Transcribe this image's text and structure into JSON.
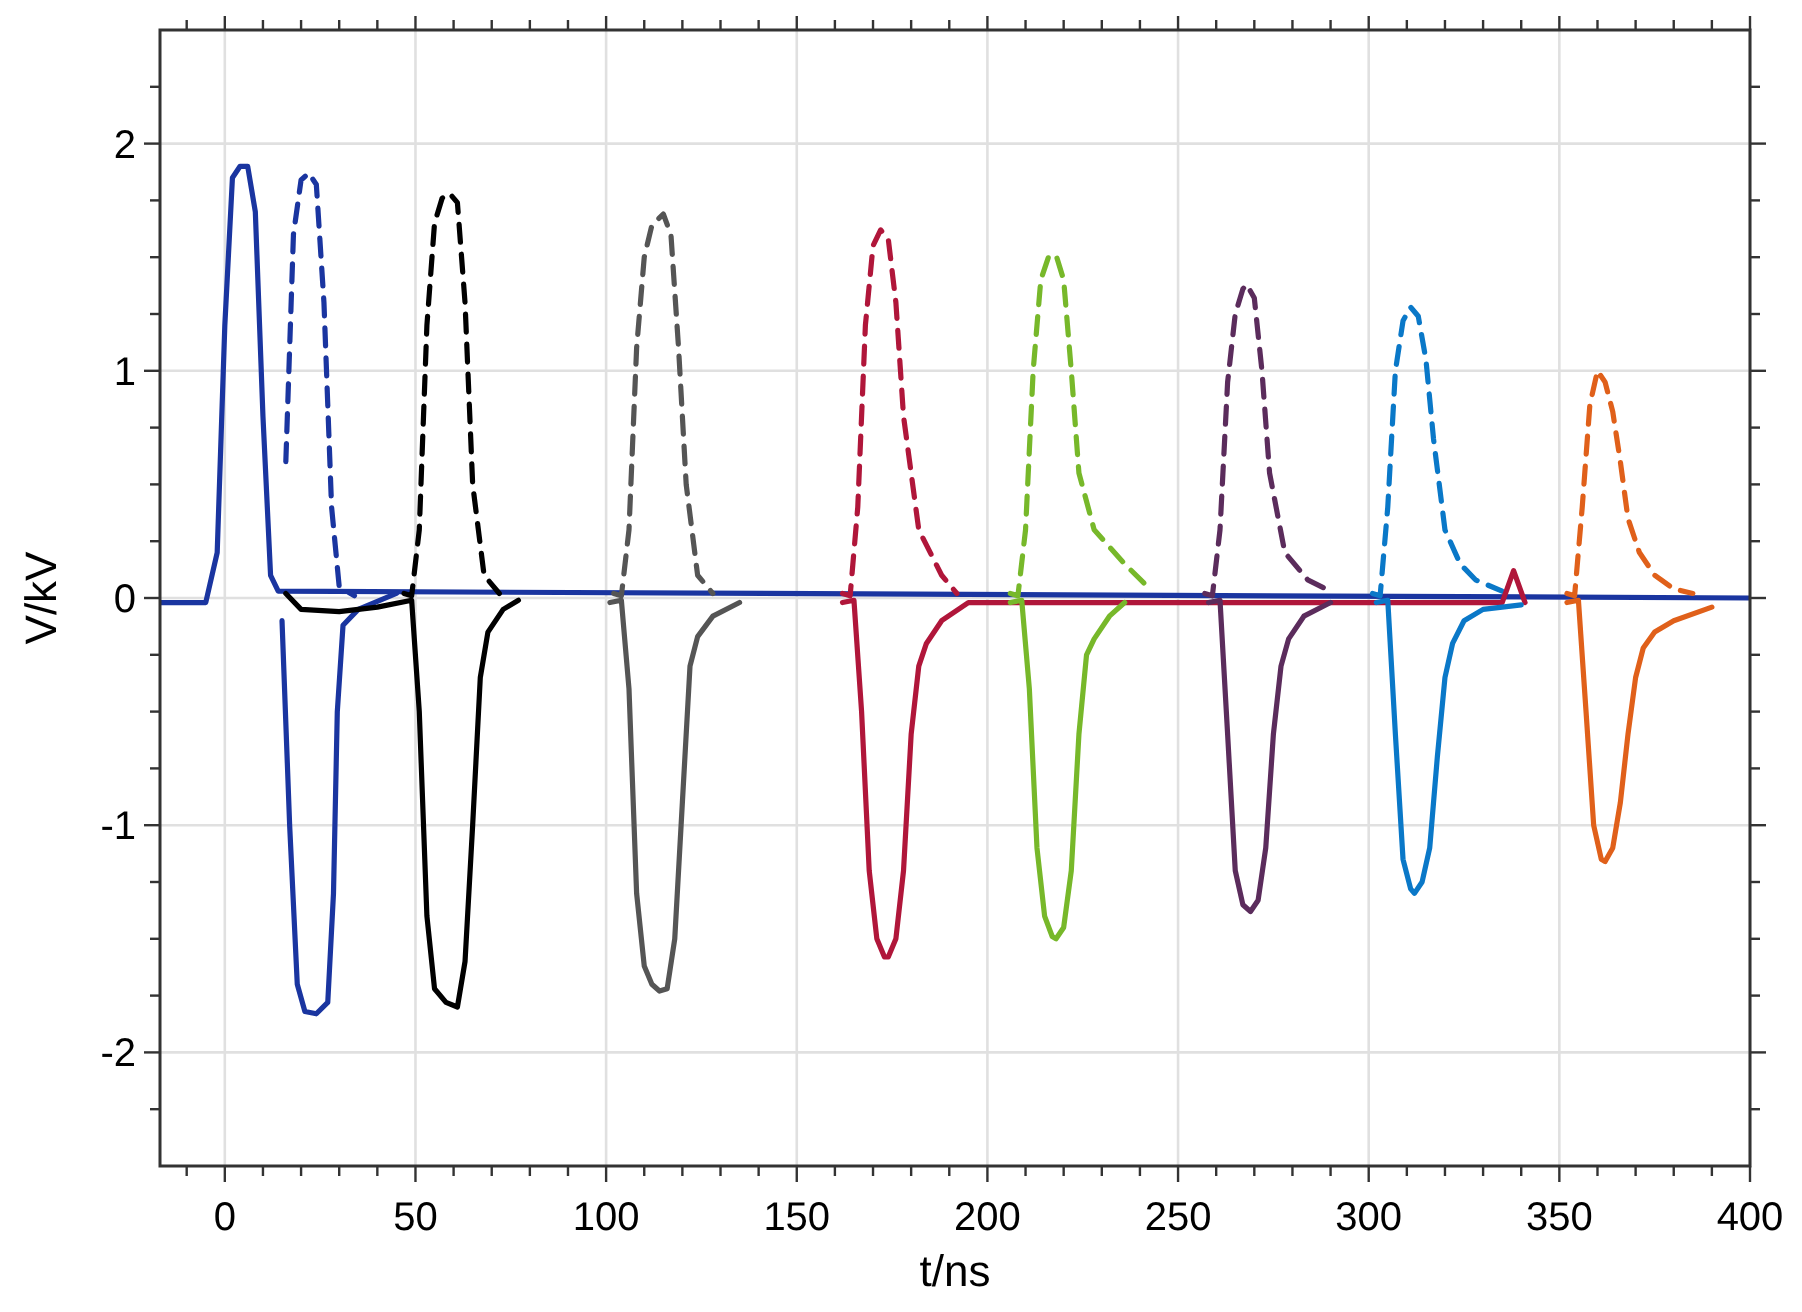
{
  "chart_data": {
    "type": "line",
    "xlabel": "t/ns",
    "ylabel": "V/kV",
    "xlim": [
      -17,
      400
    ],
    "ylim": [
      -2.5,
      2.5
    ],
    "xticks": [
      {
        "value": -10,
        "label": null
      },
      0,
      {
        "value": 10,
        "label": null
      },
      {
        "value": 20,
        "label": null
      },
      {
        "value": 30,
        "label": null
      },
      {
        "value": 40,
        "label": null
      },
      50,
      {
        "value": 60,
        "label": null
      },
      {
        "value": 70,
        "label": null
      },
      {
        "value": 80,
        "label": null
      },
      {
        "value": 90,
        "label": null
      },
      100,
      {
        "value": 110,
        "label": null
      },
      {
        "value": 120,
        "label": null
      },
      {
        "value": 130,
        "label": null
      },
      {
        "value": 140,
        "label": null
      },
      150,
      {
        "value": 160,
        "label": null
      },
      {
        "value": 170,
        "label": null
      },
      {
        "value": 180,
        "label": null
      },
      {
        "value": 190,
        "label": null
      },
      200,
      {
        "value": 210,
        "label": null
      },
      {
        "value": 220,
        "label": null
      },
      {
        "value": 230,
        "label": null
      },
      {
        "value": 240,
        "label": null
      },
      250,
      {
        "value": 260,
        "label": null
      },
      {
        "value": 270,
        "label": null
      },
      {
        "value": 280,
        "label": null
      },
      {
        "value": 290,
        "label": null
      },
      300,
      {
        "value": 310,
        "label": null
      },
      {
        "value": 320,
        "label": null
      },
      {
        "value": 330,
        "label": null
      },
      {
        "value": 340,
        "label": null
      },
      350,
      {
        "value": 360,
        "label": null
      },
      {
        "value": 370,
        "label": null
      },
      {
        "value": 380,
        "label": null
      },
      {
        "value": 390,
        "label": null
      },
      400
    ],
    "yticks": [
      {
        "value": -2.25,
        "label": null
      },
      -2,
      {
        "value": -1.75,
        "label": null
      },
      {
        "value": -1.5,
        "label": null
      },
      {
        "value": -1.25,
        "label": null
      },
      -1,
      {
        "value": -0.75,
        "label": null
      },
      {
        "value": -0.5,
        "label": null
      },
      {
        "value": -0.25,
        "label": null
      },
      0,
      {
        "value": 0.25,
        "label": null
      },
      {
        "value": 0.5,
        "label": null
      },
      {
        "value": 0.75,
        "label": null
      },
      1,
      {
        "value": 1.25,
        "label": null
      },
      {
        "value": 1.5,
        "label": null
      },
      {
        "value": 1.75,
        "label": null
      },
      2,
      {
        "value": 2.25,
        "label": null
      }
    ],
    "grid": true,
    "marker": "none",
    "series": [
      {
        "color": "#1a35a0",
        "line_style": "solid",
        "x": [
          -17,
          -5,
          -2,
          0,
          2,
          4,
          6,
          8,
          10,
          12,
          14,
          400
        ],
        "values": [
          -0.02,
          -0.02,
          0.2,
          1.2,
          1.85,
          1.9,
          1.9,
          1.7,
          0.8,
          0.1,
          0.03,
          0
        ]
      },
      {
        "color": "#1a35a0",
        "line_style": "dashed",
        "x": [
          16,
          18,
          20,
          22,
          24,
          26,
          28,
          30,
          34
        ],
        "values": [
          0.6,
          1.6,
          1.84,
          1.87,
          1.82,
          1.3,
          0.4,
          0.05,
          0.01
        ]
      },
      {
        "color": "#000000",
        "line_style": "dashed",
        "x": [
          47,
          49,
          51,
          53,
          55,
          57,
          59,
          61,
          63,
          65,
          68,
          72
        ],
        "values": [
          0.02,
          0.01,
          0.3,
          1.2,
          1.65,
          1.76,
          1.78,
          1.74,
          1.3,
          0.5,
          0.1,
          0.02
        ]
      },
      {
        "color": "#555555",
        "line_style": "dashed",
        "x": [
          102,
          104,
          106,
          108,
          110,
          112,
          115,
          117,
          119,
          121,
          124,
          128
        ],
        "values": [
          0.02,
          0.01,
          0.3,
          1.1,
          1.5,
          1.64,
          1.69,
          1.6,
          1.1,
          0.5,
          0.1,
          0.02
        ]
      },
      {
        "color": "#b0163a",
        "line_style": "dashed",
        "x": [
          162,
          164,
          166,
          168,
          170,
          172,
          174,
          176,
          178,
          182,
          188,
          192
        ],
        "values": [
          0.02,
          0.01,
          0.4,
          1.2,
          1.55,
          1.62,
          1.58,
          1.3,
          0.8,
          0.3,
          0.1,
          0.02
        ]
      },
      {
        "color": "#77b82a",
        "line_style": "dashed",
        "x": [
          206,
          208,
          210,
          212,
          214,
          216,
          218,
          220,
          222,
          224,
          228,
          236,
          242
        ],
        "values": [
          0.02,
          0.01,
          0.3,
          1.0,
          1.4,
          1.5,
          1.51,
          1.4,
          1.0,
          0.55,
          0.3,
          0.15,
          0.05
        ]
      },
      {
        "color": "#5b2c5c",
        "line_style": "dashed",
        "x": [
          257,
          259,
          261,
          263,
          265,
          267,
          268,
          270,
          272,
          274,
          278,
          284,
          290
        ],
        "values": [
          0.02,
          0.01,
          0.3,
          0.95,
          1.25,
          1.36,
          1.38,
          1.32,
          1.0,
          0.55,
          0.2,
          0.08,
          0.03
        ]
      },
      {
        "color": "#0a78c8",
        "line_style": "dashed",
        "x": [
          301,
          303,
          305,
          307,
          309,
          311,
          313,
          315,
          317,
          320,
          324,
          328,
          335
        ],
        "values": [
          0.02,
          0.01,
          0.4,
          1.0,
          1.22,
          1.28,
          1.24,
          1.05,
          0.7,
          0.3,
          0.15,
          0.08,
          0.03
        ]
      },
      {
        "color": "#e0601a",
        "line_style": "dashed",
        "x": [
          352,
          354,
          356,
          358,
          360,
          362,
          364,
          366,
          368,
          371,
          375,
          380,
          385
        ],
        "values": [
          0.02,
          0.01,
          0.4,
          0.85,
          1.0,
          0.95,
          0.82,
          0.6,
          0.35,
          0.2,
          0.1,
          0.04,
          0.02
        ]
      },
      {
        "color": "#1a35a0",
        "line_style": "solid",
        "x": [
          15,
          17,
          19,
          21,
          24,
          27,
          28.5,
          29.5,
          31,
          35,
          45
        ],
        "values": [
          -0.1,
          -1.0,
          -1.7,
          -1.82,
          -1.83,
          -1.78,
          -1.3,
          -0.5,
          -0.12,
          -0.05,
          0.02
        ]
      },
      {
        "color": "#000000",
        "line_style": "solid",
        "x": [
          16,
          20,
          30,
          40,
          49,
          51,
          53,
          55,
          58,
          61,
          63,
          65,
          67,
          69,
          73,
          77
        ],
        "values": [
          0.02,
          -0.05,
          -0.06,
          -0.04,
          -0.01,
          -0.5,
          -1.4,
          -1.72,
          -1.78,
          -1.8,
          -1.6,
          -1.0,
          -0.35,
          -0.15,
          -0.05,
          -0.01
        ]
      },
      {
        "color": "#555555",
        "line_style": "solid",
        "x": [
          101,
          104,
          106,
          108,
          110,
          112,
          114,
          116,
          118,
          120,
          122,
          124,
          128,
          135
        ],
        "values": [
          -0.02,
          -0.01,
          -0.4,
          -1.3,
          -1.62,
          -1.7,
          -1.73,
          -1.72,
          -1.5,
          -0.9,
          -0.3,
          -0.17,
          -0.08,
          -0.02
        ]
      },
      {
        "color": "#b0163a",
        "line_style": "solid",
        "x": [
          162,
          165,
          167,
          169,
          171,
          173,
          174,
          176,
          178,
          180,
          182,
          184,
          188,
          195,
          335,
          338,
          341
        ],
        "values": [
          -0.02,
          -0.01,
          -0.5,
          -1.2,
          -1.5,
          -1.58,
          -1.58,
          -1.5,
          -1.2,
          -0.6,
          -0.3,
          -0.2,
          -0.1,
          -0.02,
          -0.02,
          0.12,
          -0.02
        ]
      },
      {
        "color": "#77b82a",
        "line_style": "solid",
        "x": [
          206,
          209,
          211,
          213,
          215,
          217,
          218,
          220,
          222,
          224,
          226,
          228,
          232,
          236
        ],
        "values": [
          -0.02,
          -0.01,
          -0.4,
          -1.1,
          -1.4,
          -1.49,
          -1.5,
          -1.45,
          -1.2,
          -0.6,
          -0.25,
          -0.18,
          -0.08,
          -0.02
        ]
      },
      {
        "color": "#5b2c5c",
        "line_style": "solid",
        "x": [
          258,
          261,
          263,
          265,
          267,
          269,
          271,
          273,
          275,
          277,
          279,
          283,
          290
        ],
        "values": [
          -0.02,
          -0.01,
          -0.6,
          -1.2,
          -1.35,
          -1.38,
          -1.33,
          -1.1,
          -0.6,
          -0.3,
          -0.18,
          -0.08,
          -0.02
        ]
      },
      {
        "color": "#0a78c8",
        "line_style": "solid",
        "x": [
          302,
          305,
          307,
          309,
          311,
          312,
          314,
          316,
          318,
          320,
          322,
          325,
          330,
          340
        ],
        "values": [
          -0.02,
          -0.01,
          -0.6,
          -1.15,
          -1.28,
          -1.3,
          -1.25,
          -1.1,
          -0.7,
          -0.35,
          -0.2,
          -0.1,
          -0.05,
          -0.03
        ]
      },
      {
        "color": "#e0601a",
        "line_style": "solid",
        "x": [
          352,
          355,
          357,
          359,
          361,
          362,
          364,
          366,
          368,
          370,
          372,
          375,
          380,
          390
        ],
        "values": [
          -0.02,
          -0.01,
          -0.5,
          -1.0,
          -1.15,
          -1.16,
          -1.1,
          -0.9,
          -0.6,
          -0.35,
          -0.22,
          -0.15,
          -0.1,
          -0.04
        ]
      }
    ]
  }
}
